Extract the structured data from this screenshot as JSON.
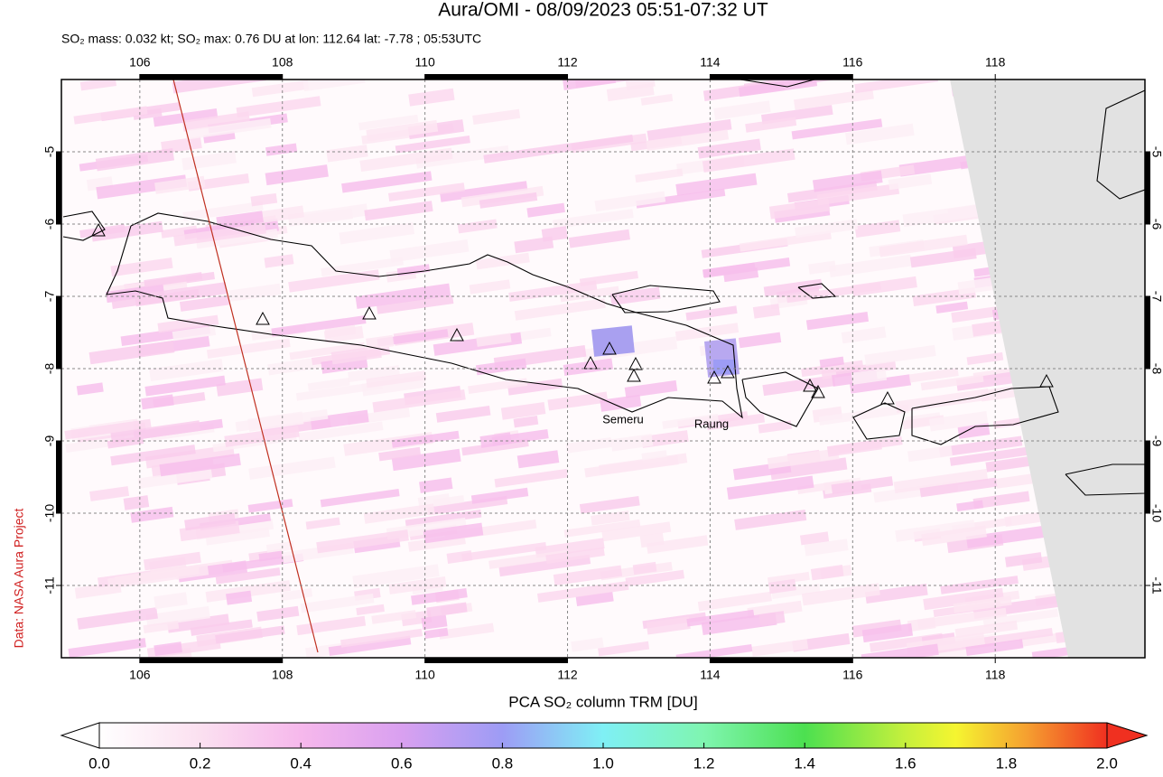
{
  "header": {
    "title": "Aura/OMI - 08/09/2023 05:51-07:32 UT",
    "subtitle": "SO₂ mass: 0.032 kt; SO₂ max: 0.76 DU at lon: 112.64 lat: -7.78 ; 05:53UTC"
  },
  "map": {
    "xlim": [
      104.9,
      120.1
    ],
    "ylim": [
      -12,
      -4
    ],
    "xticks": [
      106,
      108,
      110,
      112,
      114,
      116,
      118
    ],
    "yticks": [
      -5,
      -6,
      -7,
      -8,
      -9,
      -10,
      -11
    ],
    "grid": true,
    "volcano_labels": [
      "Semeru",
      "Raung"
    ],
    "credit": "Data: NASA Aura Project"
  },
  "colorbar": {
    "label": "PCA SO₂ column TRM [DU]",
    "lim": [
      0,
      2
    ],
    "ticks": [
      {
        "value": 0,
        "label": "0.0"
      },
      0.2,
      0.4,
      0.6,
      0.8,
      {
        "value": 1,
        "label": "1.0"
      },
      1.2,
      1.4,
      1.6,
      1.8,
      {
        "value": 2,
        "label": "2.0"
      }
    ]
  }
}
